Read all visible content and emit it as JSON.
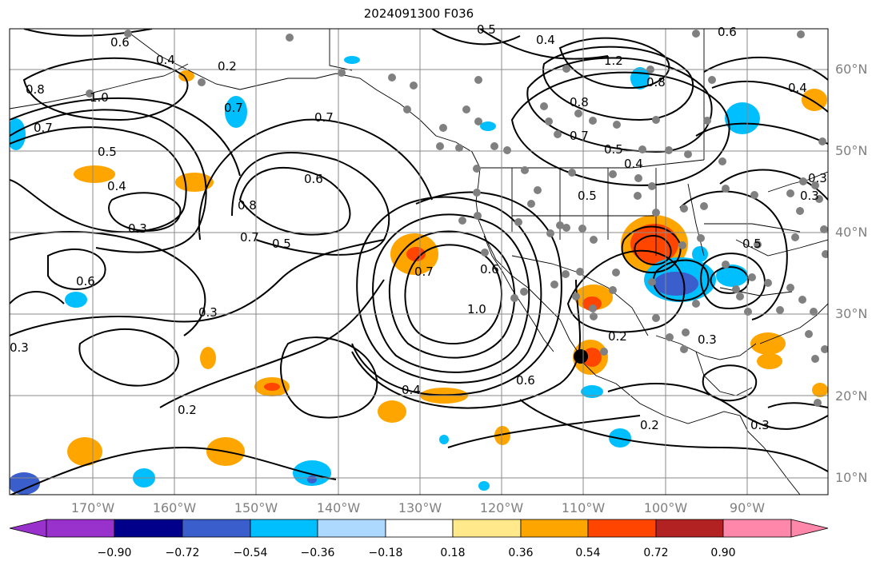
{
  "title": "2024091300 F036",
  "lat_labels": [
    "60°N",
    "50°N",
    "40°N",
    "30°N",
    "20°N",
    "10°N"
  ],
  "lon_labels": [
    "170°W",
    "160°W",
    "150°W",
    "140°W",
    "130°W",
    "120°W",
    "110°W",
    "100°W",
    "90°W"
  ],
  "colorbar": {
    "ticks": [
      "−0.90",
      "−0.72",
      "−0.54",
      "−0.36",
      "−0.18",
      "0.18",
      "0.36",
      "0.54",
      "0.72",
      "0.90"
    ],
    "colors": [
      "#9932cc",
      "#00008b",
      "#3a5fcd",
      "#00bfff",
      "#add8ff",
      "#ffffff",
      "#ffe98a",
      "#ffa500",
      "#ff4500",
      "#b22222",
      "#ff88aa"
    ]
  },
  "contour_labels": [
    "0.8",
    "1.0",
    "0.7",
    "0.5",
    "0.4",
    "0.3",
    "0.6",
    "0.8",
    "0.7",
    "0.5",
    "0.6",
    "0.3",
    "0.2",
    "0.3",
    "0.7",
    "0.4",
    "1.2",
    "0.4",
    "0.8",
    "0.7",
    "0.5",
    "0.4",
    "0.5",
    "0.6",
    "1.0",
    "0.8",
    "0.7",
    "0.4",
    "0.6",
    "0.2",
    "0.2",
    "0.3",
    "0.3",
    "0.5",
    "0.3",
    "0.4",
    "0.6",
    "0.2",
    "0.7",
    "0.5",
    "0.6",
    "0.3"
  ]
}
